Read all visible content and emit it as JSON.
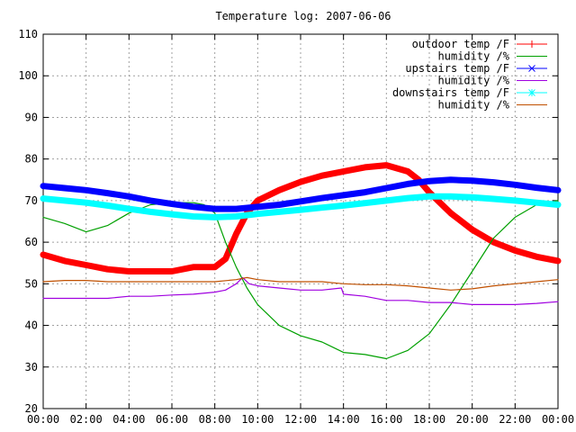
{
  "chart_data": {
    "type": "line",
    "title": "Temperature log: 2007-06-06",
    "xlabel": "",
    "ylabel": "",
    "xlim": [
      0,
      24
    ],
    "ylim": [
      20,
      110
    ],
    "grid": true,
    "legend_position": "top-right",
    "x_tick_labels": [
      "00:00",
      "02:00",
      "04:00",
      "06:00",
      "08:00",
      "10:00",
      "12:00",
      "14:00",
      "16:00",
      "18:00",
      "20:00",
      "22:00",
      "00:00"
    ],
    "y_tick_labels": [
      "20",
      "30",
      "40",
      "50",
      "60",
      "70",
      "80",
      "90",
      "100",
      "110"
    ],
    "series": [
      {
        "name": "outdoor temp /F",
        "color": "#ff0000",
        "marker": "plus",
        "x": [
          0,
          1,
          2,
          3,
          4,
          5,
          6,
          7,
          8,
          8.5,
          9,
          9.5,
          10,
          11,
          12,
          13,
          14,
          15,
          16,
          17,
          17.5,
          18,
          18.5,
          19,
          20,
          21,
          22,
          23,
          24
        ],
        "y": [
          57,
          55.5,
          54.5,
          53.5,
          53,
          53,
          53,
          54,
          54,
          56,
          62,
          67,
          70,
          72.5,
          74.5,
          76,
          77,
          78,
          78.5,
          77,
          75,
          72,
          69.5,
          67,
          63,
          60,
          58,
          56.5,
          55.5
        ]
      },
      {
        "name": "humidity /%",
        "color": "#00a000",
        "marker": "none",
        "x": [
          0,
          1,
          2,
          3,
          4,
          5,
          6,
          7,
          7.5,
          8,
          8.5,
          9,
          9.5,
          10,
          11,
          12,
          13,
          14,
          15,
          16,
          17,
          18,
          19,
          20,
          21,
          22,
          23,
          24
        ],
        "y": [
          66,
          64.5,
          62.5,
          64,
          67,
          69,
          69.5,
          69.5,
          69,
          67,
          60,
          54,
          49,
          45,
          40,
          37.5,
          36,
          33.5,
          33,
          32,
          34,
          38,
          45,
          53,
          61,
          66,
          69,
          70
        ]
      },
      {
        "name": "upstairs temp /F",
        "color": "#0000ff",
        "marker": "cross",
        "x": [
          0,
          1,
          2,
          3,
          4,
          5,
          6,
          7,
          8,
          9,
          10,
          11,
          12,
          13,
          14,
          15,
          16,
          17,
          18,
          19,
          20,
          21,
          22,
          23,
          24
        ],
        "y": [
          73.5,
          73,
          72.5,
          71.8,
          71,
          70,
          69.2,
          68.5,
          68,
          68,
          68.5,
          69,
          69.8,
          70.6,
          71.3,
          72,
          73,
          74,
          74.7,
          75,
          74.8,
          74.4,
          73.8,
          73.1,
          72.5
        ]
      },
      {
        "name": "humidity /%",
        "color": "#a000e0",
        "marker": "none",
        "x": [
          0,
          1,
          2,
          3,
          4,
          5,
          6,
          7,
          8,
          8.5,
          9,
          9.3,
          9.6,
          10,
          11,
          12,
          13,
          13.9,
          14,
          15,
          16,
          17,
          18,
          19,
          20,
          21,
          22,
          23,
          24
        ],
        "y": [
          46.5,
          46.5,
          46.5,
          46.5,
          47,
          47,
          47.3,
          47.5,
          48,
          48.5,
          50,
          51.5,
          50,
          49.5,
          49,
          48.5,
          48.5,
          49,
          47.5,
          47,
          46,
          46,
          45.5,
          45.5,
          45,
          45,
          45,
          45.3,
          45.7
        ]
      },
      {
        "name": "downstairs temp /F",
        "color": "#00ffff",
        "marker": "star",
        "x": [
          0,
          1,
          2,
          3,
          4,
          5,
          6,
          7,
          8,
          9,
          10,
          11,
          12,
          13,
          14,
          15,
          16,
          17,
          18,
          19,
          20,
          21,
          22,
          23,
          24
        ],
        "y": [
          70.5,
          70,
          69.5,
          68.8,
          68,
          67.3,
          66.7,
          66.2,
          66,
          66.2,
          66.8,
          67.3,
          67.8,
          68.3,
          68.8,
          69.4,
          70,
          70.6,
          71,
          71,
          70.8,
          70.4,
          70,
          69.5,
          69
        ]
      },
      {
        "name": "humidity /%",
        "color": "#c05000",
        "marker": "none",
        "x": [
          0,
          1,
          2,
          3,
          4,
          5,
          6,
          7,
          8,
          9,
          9.5,
          10,
          11,
          12,
          13,
          14,
          15,
          16,
          17,
          18,
          19,
          20,
          21,
          22,
          23,
          24
        ],
        "y": [
          50.5,
          50.8,
          50.8,
          50.5,
          50.5,
          50.5,
          50.5,
          50.5,
          50.5,
          51,
          51.5,
          51,
          50.5,
          50.5,
          50.5,
          50,
          49.8,
          49.8,
          49.5,
          49,
          48.5,
          48.8,
          49.5,
          50,
          50.5,
          51
        ]
      }
    ]
  }
}
